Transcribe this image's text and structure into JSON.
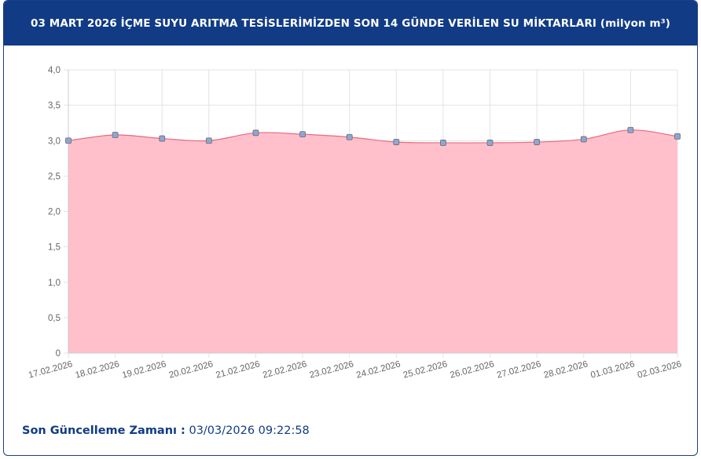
{
  "header": {
    "title": "03 MART 2026 İÇME SUYU ARITMA TESİSLERİMİZDEN SON 14 GÜNDE VERİLEN SU MİKTARLARI (milyon m³)"
  },
  "footer": {
    "label": "Son Güncelleme Zamanı :",
    "value": "03/03/2026 09:22:58"
  },
  "colors": {
    "header_bg": "#113b85",
    "area_fill": "#ffc0cb",
    "line": "#e8697f",
    "point_fill": "#8ea6d6"
  },
  "chart_data": {
    "type": "area",
    "title": "",
    "xlabel": "",
    "ylabel": "",
    "categories": [
      "17.02.2026",
      "18.02.2026",
      "19.02.2026",
      "20.02.2026",
      "21.02.2026",
      "22.02.2026",
      "23.02.2026",
      "24.02.2026",
      "25.02.2026",
      "26.02.2026",
      "27.02.2026",
      "28.02.2026",
      "01.03.2026",
      "02.03.2026"
    ],
    "values": [
      3.0,
      3.08,
      3.03,
      3.0,
      3.11,
      3.09,
      3.05,
      2.98,
      2.97,
      2.97,
      2.98,
      3.02,
      3.15,
      3.06
    ],
    "ylim": [
      0,
      4
    ],
    "yticks": [
      0,
      0.5,
      1,
      1.5,
      2,
      2.5,
      3,
      3.5,
      4
    ],
    "ytick_labels": [
      "0",
      "0,5",
      "1,0",
      "1,5",
      "2,0",
      "2,5",
      "3,0",
      "3,5",
      "4,0"
    ],
    "grid": true,
    "legend": "none"
  }
}
